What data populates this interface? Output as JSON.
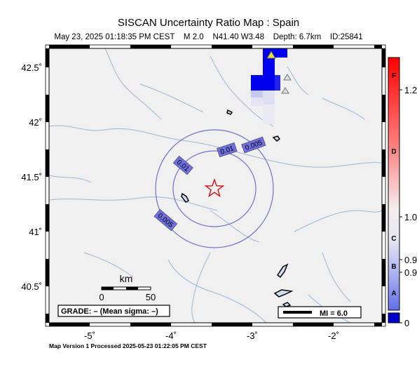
{
  "map": {
    "title": "SISCAN Uncertainty Ratio Map : Spain",
    "subtitle": "May 23, 2025 01:18:35 PM CEST    M 2.0    N41.40 W3.48    Depth: 6.7km    ID:25841",
    "footer": "Map Version 1 Processed 2025-05-23 01:22:05 PM CEST",
    "lon_ticks": [
      "-5˚",
      "-4˚",
      "-3˚",
      "-2˚"
    ],
    "lat_ticks": [
      "42.5˚",
      "42˚",
      "41.5˚",
      "41˚",
      "40.5˚"
    ],
    "contour_labels": [
      "0.005",
      "0.01",
      "0.01",
      "0.005"
    ],
    "scale_bar": {
      "unit": "km",
      "start": "0",
      "end": "50"
    },
    "grade_box": "GRADE: – (Mean sigma: –)",
    "mi_legend": "MI = 6.0",
    "colorbar": {
      "values": [
        "1.2",
        "1.0",
        "0.9",
        "0.9",
        "0"
      ],
      "grades": [
        "F",
        "D",
        "C",
        "B",
        "A"
      ],
      "top_color": "#ff0000",
      "bottom_color": "#0000cc"
    }
  }
}
